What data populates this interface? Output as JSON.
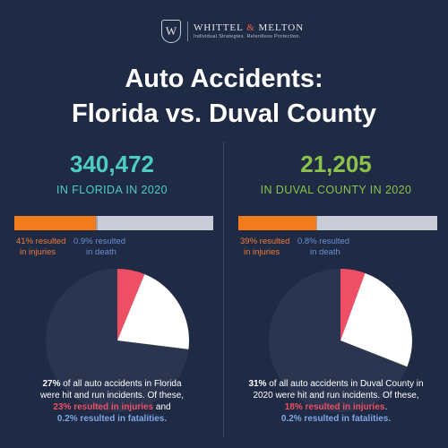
{
  "logo": {
    "mark": "W",
    "name_part1": "WHITTEL",
    "amp": "&",
    "name_part2": "MELTON",
    "tagline": "Individual Strategies. Relentless Protection."
  },
  "title": {
    "line1": "Auto Accidents:",
    "line2": "Florida vs. Duval County"
  },
  "colors": {
    "background": "#1f2a44",
    "florida_accent": "#4ecdc4",
    "duval_accent": "#8bc34a",
    "injury_bar": "#f47b1c",
    "bar_background": "#c9ccd6",
    "pie_base": "#2b3550",
    "hit_and_run": "#ef4f64",
    "non_injury": "#ffffff",
    "fatality": "#8bc34a"
  },
  "panels": [
    {
      "total": "340,472",
      "label": "IN FLORIDA IN 2020",
      "injury_note_line1": "41% resulted",
      "injury_note_line2": "in injuries",
      "death_note_line1": "0.9% resulted",
      "death_note_line2": "in death",
      "caption": {
        "pct": "27%",
        "text1": " of all auto accidents in Florida",
        "text2": "were hit and run incidents. Of these,",
        "injury_line": "23% resulted in injuries",
        "and": " and",
        "fatal_line": "0.2% resulted in fatalities."
      }
    },
    {
      "total": "21,205",
      "label": "IN DUVAL COUNTY IN 2020",
      "injury_note_line1": "39% resulted",
      "injury_note_line2": "in injuries",
      "death_note_line1": "0.8% resulted",
      "death_note_line2": "in death",
      "caption": {
        "pct": "31%",
        "text1": " of all auto accidents in Duval County in",
        "text2": "2020 were hit and run incidents. Of these,",
        "injury_line": "18% resulted in injuries",
        "and": ".",
        "fatal_line": "0.2% resulted in fatalities."
      }
    }
  ],
  "chart_data": [
    {
      "type": "bar",
      "orientation": "horizontal-stacked",
      "categories": [
        "resulted in injuries",
        "resulted in death"
      ],
      "values": [
        41,
        0.9
      ],
      "unit": "%",
      "total_accidents": 340472,
      "region": "Florida"
    },
    {
      "type": "pie",
      "region": "Florida",
      "hit_and_run_share": 27,
      "slices": [
        {
          "name": "hit and run - injuries",
          "value": 23
        },
        {
          "name": "hit and run - no injury",
          "value": 76.8
        },
        {
          "name": "hit and run - fatalities",
          "value": 0.2
        }
      ],
      "unit": "%"
    },
    {
      "type": "bar",
      "orientation": "horizontal-stacked",
      "categories": [
        "resulted in injuries",
        "resulted in death"
      ],
      "values": [
        39,
        0.8
      ],
      "unit": "%",
      "total_accidents": 21205,
      "region": "Duval County"
    },
    {
      "type": "pie",
      "region": "Duval County",
      "hit_and_run_share": 31,
      "slices": [
        {
          "name": "hit and run - injuries",
          "value": 18
        },
        {
          "name": "hit and run - no injury",
          "value": 81.8
        },
        {
          "name": "hit and run - fatalities",
          "value": 0.2
        }
      ],
      "unit": "%"
    }
  ]
}
